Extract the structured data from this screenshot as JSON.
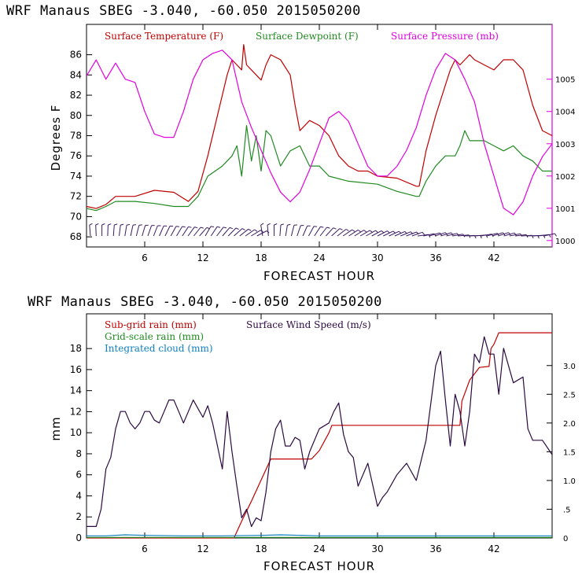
{
  "colors": {
    "temp": "#c00000",
    "dew": "#208a20",
    "pres": "#e000e0",
    "subgrid": "#c00000",
    "gridscale": "#208a20",
    "cloud": "#1080c0",
    "wind": "#2a0a40",
    "wind_barb": "#3a1a60",
    "right_axis": "#e000e0"
  },
  "charts": [
    {
      "title": "WRF   Manaus SBEG   -3.040, -60.050  2015050200",
      "xlabel": "FORECAST HOUR",
      "ylabel": "Degrees F",
      "legend": [
        "Surface Temperature (F)",
        "Surface Dewpoint (F)",
        "Surface Pressure (mb)"
      ],
      "x_ticks": [
        "6",
        "12",
        "18",
        "24",
        "30",
        "36",
        "42"
      ],
      "y_ticks": [
        "68",
        "70",
        "72",
        "74",
        "76",
        "78",
        "80",
        "82",
        "84",
        "86"
      ],
      "y2_ticks": [
        "1000",
        "1001",
        "1002",
        "1003",
        "1004",
        "1005"
      ]
    },
    {
      "title": "WRF   Manaus SBEG   -3.040, -60.050  2015050200",
      "xlabel": "FORECAST HOUR",
      "ylabel": "mm",
      "legend": [
        "Sub-grid rain (mm)",
        "Surface Wind Speed (m/s)",
        "Grid-scale rain (mm)",
        "Integrated cloud (mm)"
      ],
      "x_ticks": [
        "6",
        "12",
        "18",
        "24",
        "30",
        "36",
        "42"
      ],
      "y_ticks": [
        "0",
        "2",
        "4",
        "6",
        "8",
        "10",
        "12",
        "14",
        "16",
        "18"
      ],
      "y2_ticks": [
        "0",
        ".5",
        "1.0",
        "1.5",
        "2.0",
        "2.5",
        "3.0"
      ]
    }
  ],
  "chart_data": [
    {
      "type": "line",
      "title": "WRF   Manaus SBEG   -3.040, -60.050  2015050200",
      "xlabel": "FORECAST HOUR",
      "ylabel": "Degrees F",
      "xlim": [
        0,
        48
      ],
      "ylim": [
        67,
        89
      ],
      "y2lim": [
        999.8,
        1006.7
      ],
      "x_ticks": [
        6,
        12,
        18,
        24,
        30,
        36,
        42
      ],
      "y_ticks": [
        68,
        70,
        72,
        74,
        76,
        78,
        80,
        82,
        84,
        86
      ],
      "y2_ticks": [
        1000,
        1001,
        1002,
        1003,
        1004,
        1005
      ],
      "series": [
        {
          "name": "Surface Temperature (F)",
          "axis": "left",
          "x": [
            0,
            1,
            2,
            3,
            5,
            7,
            9,
            10.5,
            11.5,
            12.5,
            13.5,
            14.5,
            15,
            15.5,
            16,
            16.2,
            16.5,
            17,
            18,
            18.5,
            19,
            20,
            21,
            21.5,
            22,
            23,
            24,
            25,
            26,
            27,
            28,
            29,
            30,
            32,
            34,
            34.3,
            35,
            36,
            37,
            37.5,
            38,
            38.5,
            39,
            39.5,
            40,
            41,
            42,
            43,
            44,
            45,
            46,
            47,
            48
          ],
          "y": [
            71.0,
            70.8,
            71.2,
            72.0,
            72.0,
            72.6,
            72.4,
            71.5,
            72.5,
            76.0,
            80.0,
            84.0,
            85.5,
            85.0,
            84.5,
            87.0,
            85.0,
            84.5,
            83.5,
            85.0,
            86.0,
            85.5,
            84.0,
            81.0,
            78.5,
            79.5,
            79.0,
            78.0,
            76.0,
            75.0,
            74.5,
            74.5,
            74.0,
            73.8,
            73.0,
            73.0,
            76.5,
            80.0,
            83.0,
            84.5,
            85.5,
            85.0,
            85.5,
            86.0,
            85.5,
            85.0,
            84.5,
            85.5,
            85.5,
            84.5,
            81.0,
            78.5,
            78.0
          ]
        },
        {
          "name": "Surface Dewpoint (F)",
          "axis": "left",
          "x": [
            0,
            1,
            2,
            3,
            5,
            7,
            9,
            10.5,
            11.5,
            12.5,
            14,
            15,
            15.5,
            16,
            16.5,
            17,
            17.5,
            18,
            18.5,
            19,
            20,
            21,
            22,
            23,
            24,
            25,
            27,
            30,
            32,
            34,
            34.3,
            35,
            36,
            37,
            38,
            38.5,
            39,
            39.5,
            40,
            41,
            42,
            43,
            44,
            45,
            46,
            47,
            48
          ],
          "y": [
            70.8,
            70.6,
            71.0,
            71.5,
            71.5,
            71.3,
            71.0,
            71.0,
            72.0,
            74.0,
            75.0,
            76.0,
            77.0,
            74.0,
            79.0,
            75.5,
            78.0,
            74.5,
            78.5,
            78.0,
            75.0,
            76.5,
            77.0,
            75.0,
            75.0,
            74.0,
            73.5,
            73.2,
            72.5,
            72.0,
            72.0,
            73.5,
            75.0,
            76.0,
            76.0,
            77.0,
            78.5,
            77.5,
            77.5,
            77.5,
            77.0,
            76.5,
            77.0,
            76.0,
            75.5,
            74.5,
            74.5
          ]
        },
        {
          "name": "Surface Pressure (mb)",
          "axis": "right",
          "x": [
            0,
            1,
            2,
            3,
            4,
            5,
            6,
            7,
            8,
            9,
            10,
            11,
            12,
            13,
            14,
            15,
            16,
            17,
            18,
            19,
            20,
            21,
            22,
            23,
            24,
            25,
            26,
            27,
            28,
            29,
            30,
            31,
            32,
            33,
            34,
            35,
            36,
            37,
            38,
            39,
            40,
            41,
            42,
            43,
            44,
            45,
            46,
            47,
            48
          ],
          "y": [
            1005.1,
            1005.6,
            1005.0,
            1005.5,
            1005.0,
            1004.9,
            1004.0,
            1003.3,
            1003.2,
            1003.2,
            1004.0,
            1005.0,
            1005.6,
            1005.8,
            1005.9,
            1005.6,
            1004.3,
            1003.5,
            1002.8,
            1002.1,
            1001.5,
            1001.2,
            1001.5,
            1002.2,
            1003.0,
            1003.8,
            1004.0,
            1003.7,
            1003.0,
            1002.3,
            1002.0,
            1002.0,
            1002.3,
            1002.8,
            1003.5,
            1004.5,
            1005.3,
            1005.8,
            1005.6,
            1005.0,
            1004.3,
            1003.0,
            1002.0,
            1001.0,
            1000.8,
            1001.2,
            1002.0,
            1002.6,
            1003.0
          ]
        }
      ],
      "wind_barbs": true
    },
    {
      "type": "line",
      "title": "WRF   Manaus SBEG   -3.040, -60.050  2015050200",
      "xlabel": "FORECAST HOUR",
      "ylabel": "mm",
      "xlim": [
        0,
        48
      ],
      "ylim": [
        0,
        21.3
      ],
      "y2lim": [
        0,
        3.9
      ],
      "x_ticks": [
        6,
        12,
        18,
        24,
        30,
        36,
        42
      ],
      "y_ticks": [
        0,
        2,
        4,
        6,
        8,
        10,
        12,
        14,
        16,
        18
      ],
      "y2_ticks": [
        0,
        0.5,
        1.0,
        1.5,
        2.0,
        2.5,
        3.0
      ],
      "series": [
        {
          "name": "Sub-grid rain (mm)",
          "axis": "left",
          "x": [
            0,
            15.2,
            16,
            17,
            18,
            19,
            21,
            22,
            23.2,
            24,
            25,
            25.3,
            30,
            38.5,
            38.7,
            39.5,
            40.5,
            41.5,
            41.7,
            42,
            42.5,
            48
          ],
          "y": [
            0,
            0,
            1.6,
            3.5,
            5.5,
            7.5,
            7.5,
            7.5,
            7.5,
            8.3,
            10.0,
            10.7,
            10.7,
            10.7,
            13.0,
            15.0,
            16.2,
            16.3,
            18.0,
            18.4,
            19.5,
            19.5
          ]
        },
        {
          "name": "Surface Wind Speed (m/s)",
          "axis": "right",
          "x": [
            0,
            1,
            1.5,
            2,
            2.5,
            3,
            3.5,
            4,
            4.5,
            5,
            5.5,
            6,
            6.5,
            7,
            7.5,
            8,
            8.5,
            9,
            9.5,
            10,
            10.5,
            11,
            11.5,
            12,
            12.5,
            13,
            14,
            14.5,
            15,
            15.5,
            16,
            16.5,
            17,
            17.5,
            18,
            18.5,
            19,
            19.5,
            20,
            20.5,
            21,
            21.5,
            22,
            22.5,
            23,
            24,
            25,
            25.5,
            26,
            26.5,
            27,
            27.5,
            28,
            29,
            30,
            30.5,
            31,
            32,
            33,
            34,
            35,
            36,
            36.5,
            37,
            37.5,
            38,
            38.5,
            39,
            39.5,
            40,
            40.5,
            41,
            41.5,
            42,
            42.5,
            43,
            44,
            45,
            45.5,
            46,
            47,
            48
          ],
          "y": [
            0.2,
            0.2,
            0.5,
            1.2,
            1.4,
            1.9,
            2.2,
            2.2,
            2.0,
            1.9,
            2.0,
            2.2,
            2.2,
            2.05,
            2.0,
            2.2,
            2.4,
            2.4,
            2.2,
            2.0,
            2.2,
            2.4,
            2.25,
            2.1,
            2.3,
            2.0,
            1.2,
            2.2,
            1.5,
            0.9,
            0.35,
            0.5,
            0.2,
            0.35,
            0.3,
            0.8,
            1.5,
            1.9,
            2.05,
            1.6,
            1.6,
            1.75,
            1.7,
            1.2,
            1.5,
            1.9,
            2.0,
            2.2,
            2.35,
            1.8,
            1.5,
            1.4,
            0.9,
            1.3,
            0.55,
            0.7,
            0.8,
            1.1,
            1.3,
            1.0,
            1.7,
            3.0,
            3.25,
            2.4,
            1.6,
            2.5,
            2.2,
            1.6,
            2.2,
            3.2,
            3.05,
            3.5,
            3.2,
            3.2,
            2.5,
            3.3,
            2.7,
            2.8,
            1.9,
            1.7,
            1.7,
            1.45
          ]
        },
        {
          "name": "Grid-scale rain (mm)",
          "axis": "left",
          "x": [
            0,
            48
          ],
          "y": [
            0.05,
            0.05
          ]
        },
        {
          "name": "Integrated cloud (mm)",
          "axis": "left",
          "x": [
            0,
            2,
            4,
            6,
            10,
            14,
            18,
            20,
            24,
            30,
            36,
            42,
            48
          ],
          "y": [
            0.2,
            0.2,
            0.3,
            0.25,
            0.2,
            0.2,
            0.25,
            0.3,
            0.2,
            0.2,
            0.2,
            0.2,
            0.2
          ]
        }
      ]
    }
  ]
}
